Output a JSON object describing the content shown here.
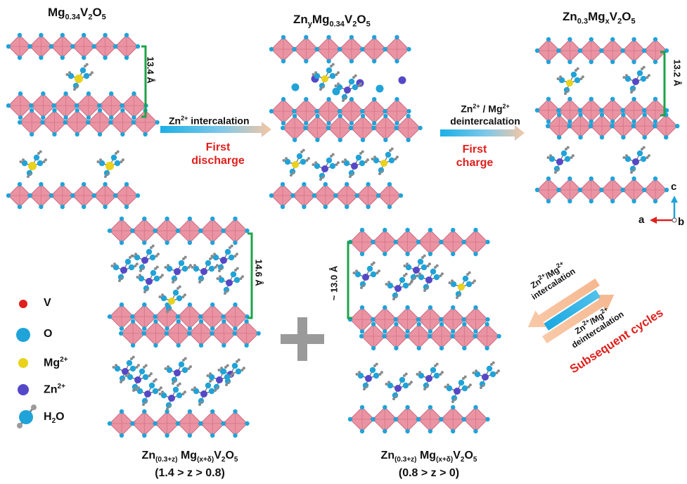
{
  "phases": {
    "p1_title": {
      "main": "Mg",
      "sub1": "0.34",
      "mid": "V",
      "sub2": "2",
      "end": "O",
      "sub3": "5"
    },
    "p2_title": {
      "a": "Zn",
      "sa": "y",
      "b": "Mg",
      "sb": "0.34",
      "c": "V",
      "sc": "2",
      "d": "O",
      "sd": "5"
    },
    "p3_title": {
      "a": "Zn",
      "sa": "0.3",
      "b": "Mg",
      "sb": "x",
      "c": "V",
      "sc": "2",
      "d": "O",
      "sd": "5"
    },
    "p1_distance": "13.4 Å",
    "p3_distance": "13.2 Å",
    "p4_distance": "14.6 Å",
    "p5_distance": "~ 13.0 Å",
    "p4_formula": {
      "a": "Zn",
      "sa": "(0.3+z)",
      "b": "Mg",
      "sb": "(x+δ)",
      "c": "V",
      "sc": "2",
      "d": "O",
      "sd": "5"
    },
    "p4_range": "(1.4 > z > 0.8)",
    "p5_formula": {
      "a": "Zn",
      "sa": "(0.3+z)",
      "b": "Mg",
      "sb": "(x+δ)",
      "c": "V",
      "sc": "2",
      "d": "O",
      "sd": "5"
    },
    "p5_range": "(0.8 > z > 0)"
  },
  "arrows": {
    "discharge_top": "Zn",
    "discharge_top_sup": "2+",
    "discharge_top_rest": " intercalation",
    "discharge_red_1": "First",
    "discharge_red_2": "discharge",
    "charge_top_1a": "Zn",
    "charge_top_1sup": "2+",
    "charge_top_1b": " / Mg",
    "charge_top_1sup2": "2+",
    "charge_top_2": "deintercalation",
    "charge_red_1": "First",
    "charge_red_2": "charge",
    "cycle_upper_1a": "Zn",
    "cycle_upper_1sup": "2+",
    "cycle_upper_1b": "/Mg",
    "cycle_upper_1sup2": "2+",
    "cycle_upper_2": "intercalation",
    "cycle_lower_1a": "Zn",
    "cycle_lower_1sup": "2+",
    "cycle_lower_1b": "/Mg",
    "cycle_lower_1sup2": "2+",
    "cycle_lower_2": "deintercalation",
    "cycle_red": "Subsequent cycles"
  },
  "legend": {
    "v": "V",
    "o": "O",
    "mg": "Mg",
    "mg_sup": "2+",
    "zn": "Zn",
    "zn_sup": "2+",
    "h2o_a": "H",
    "h2o_sub": "2",
    "h2o_b": "O"
  },
  "axes": {
    "c": "c",
    "a": "a",
    "b": "b"
  },
  "colors": {
    "octahedron": "#e98a9c",
    "octahedron_dark": "#c95f76",
    "oxygen": "#1fa3d8",
    "vanadium": "#e0201c",
    "magnesium": "#e8d21c",
    "zinc": "#5548c8",
    "hydrogen": "#8a8a8a",
    "bracket": "#1ea34a",
    "red_text": "#e0201c"
  }
}
